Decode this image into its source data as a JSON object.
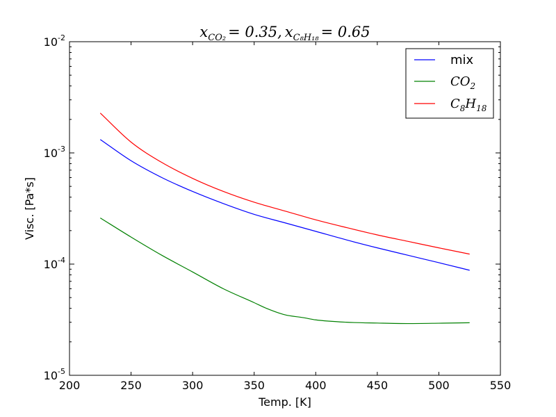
{
  "chart_data": {
    "type": "line",
    "title": {
      "x1_base": "x",
      "x1_sub": "CO₂",
      "x1_value": "= 0.35,",
      "x2_base": "x",
      "x2_sub": "C₈H₁₈",
      "x2_value": "= 0.65"
    },
    "xlabel": "Temp. [K]",
    "ylabel": "Visc. [Pa*s]",
    "xlim": [
      200,
      550
    ],
    "ylim": [
      1e-05,
      0.01
    ],
    "yscale": "log",
    "x_ticks": [
      200,
      250,
      300,
      350,
      400,
      450,
      500,
      550
    ],
    "x_tick_labels": [
      "200",
      "250",
      "300",
      "350",
      "400",
      "450",
      "500",
      "550"
    ],
    "y_ticks": [
      {
        "value": 1e-05,
        "base": "10",
        "exp": "-5"
      },
      {
        "value": 0.0001,
        "base": "10",
        "exp": "-4"
      },
      {
        "value": 0.001,
        "base": "10",
        "exp": "-3"
      },
      {
        "value": 0.01,
        "base": "10",
        "exp": "-2"
      }
    ],
    "grid": false,
    "legend_position": "top-right",
    "series": [
      {
        "name": "mix",
        "name_sub": "",
        "name_math": false,
        "color": "#0000ff",
        "x": [
          225,
          250,
          275,
          300,
          325,
          350,
          375,
          400,
          425,
          450,
          475,
          500,
          525
        ],
        "y": [
          0.00132,
          0.00085,
          0.0006,
          0.00045,
          0.00035,
          0.00028,
          0.000235,
          0.000197,
          0.000165,
          0.00014,
          0.00012,
          0.000103,
          8.8e-05
        ]
      },
      {
        "name": "CO",
        "name_sub": "2",
        "name_math": true,
        "color": "#008000",
        "x": [
          225,
          250,
          275,
          300,
          325,
          350,
          360,
          375,
          390,
          400,
          425,
          450,
          475,
          500,
          525
        ],
        "y": [
          0.00026,
          0.000175,
          0.00012,
          8.5e-05,
          6e-05,
          4.5e-05,
          4e-05,
          3.5e-05,
          3.3e-05,
          3.15e-05,
          3e-05,
          2.95e-05,
          2.92e-05,
          2.94e-05,
          2.97e-05
        ]
      },
      {
        "name": "C",
        "name_sub": "8",
        "name_mid": "H",
        "name_sub2": "18",
        "name_math": true,
        "color": "#ff0000",
        "x": [
          225,
          250,
          275,
          300,
          325,
          350,
          375,
          400,
          425,
          450,
          475,
          500,
          525
        ],
        "y": [
          0.00228,
          0.00125,
          0.00082,
          0.00059,
          0.00045,
          0.00036,
          0.0003,
          0.00025,
          0.000213,
          0.000183,
          0.00016,
          0.00014,
          0.000123
        ]
      }
    ]
  }
}
